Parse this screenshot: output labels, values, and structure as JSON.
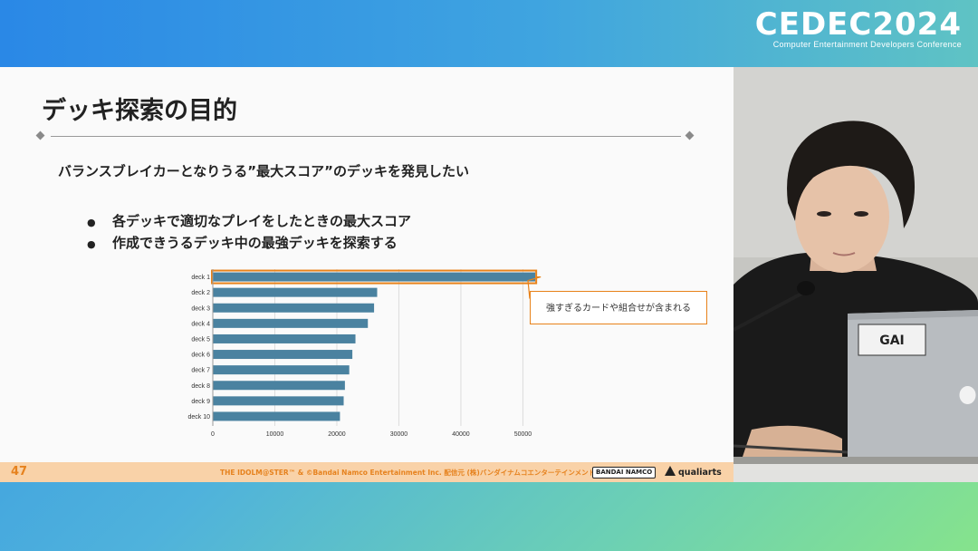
{
  "logo": {
    "main": "CEDEC2024",
    "sub": "Computer Entertainment Developers Conference"
  },
  "slide": {
    "title": "デッキ探索の目的",
    "subtitle": "バランスブレイカーとなりうる”最大スコア”のデッキを発見したい",
    "bullets": [
      "各デッキで適切なプレイをしたときの最大スコア",
      "作成できうるデッキ中の最強デッキを探索する"
    ],
    "callout": "強すぎるカードや組合せが含まれる",
    "page_number": "47",
    "copyright": "THE IDOLM@STER™ & ©Bandai Namco Entertainment Inc.  配信元 (株)バンダイナムコエンターテインメント",
    "bandai_logo": "BANDAI NAMCO",
    "qualiarts_logo": "qualiarts"
  },
  "chart_data": {
    "type": "bar",
    "orientation": "horizontal",
    "categories": [
      "deck 1",
      "deck 2",
      "deck 3",
      "deck 4",
      "deck 5",
      "deck 6",
      "deck 7",
      "deck 8",
      "deck 9",
      "deck 10"
    ],
    "values": [
      52000,
      26500,
      26000,
      25000,
      23000,
      22500,
      22000,
      21300,
      21100,
      20500
    ],
    "xticks": [
      "0",
      "10000",
      "20000",
      "30000",
      "40000",
      "50000"
    ],
    "xlim": [
      0,
      53000
    ],
    "highlight_index": 0,
    "bar_color": "#4a82a0",
    "highlight_color": "#e8821a",
    "grid": true
  },
  "colors": {
    "accent_orange": "#e6821e",
    "footer_bg": "#f9d2a8"
  }
}
